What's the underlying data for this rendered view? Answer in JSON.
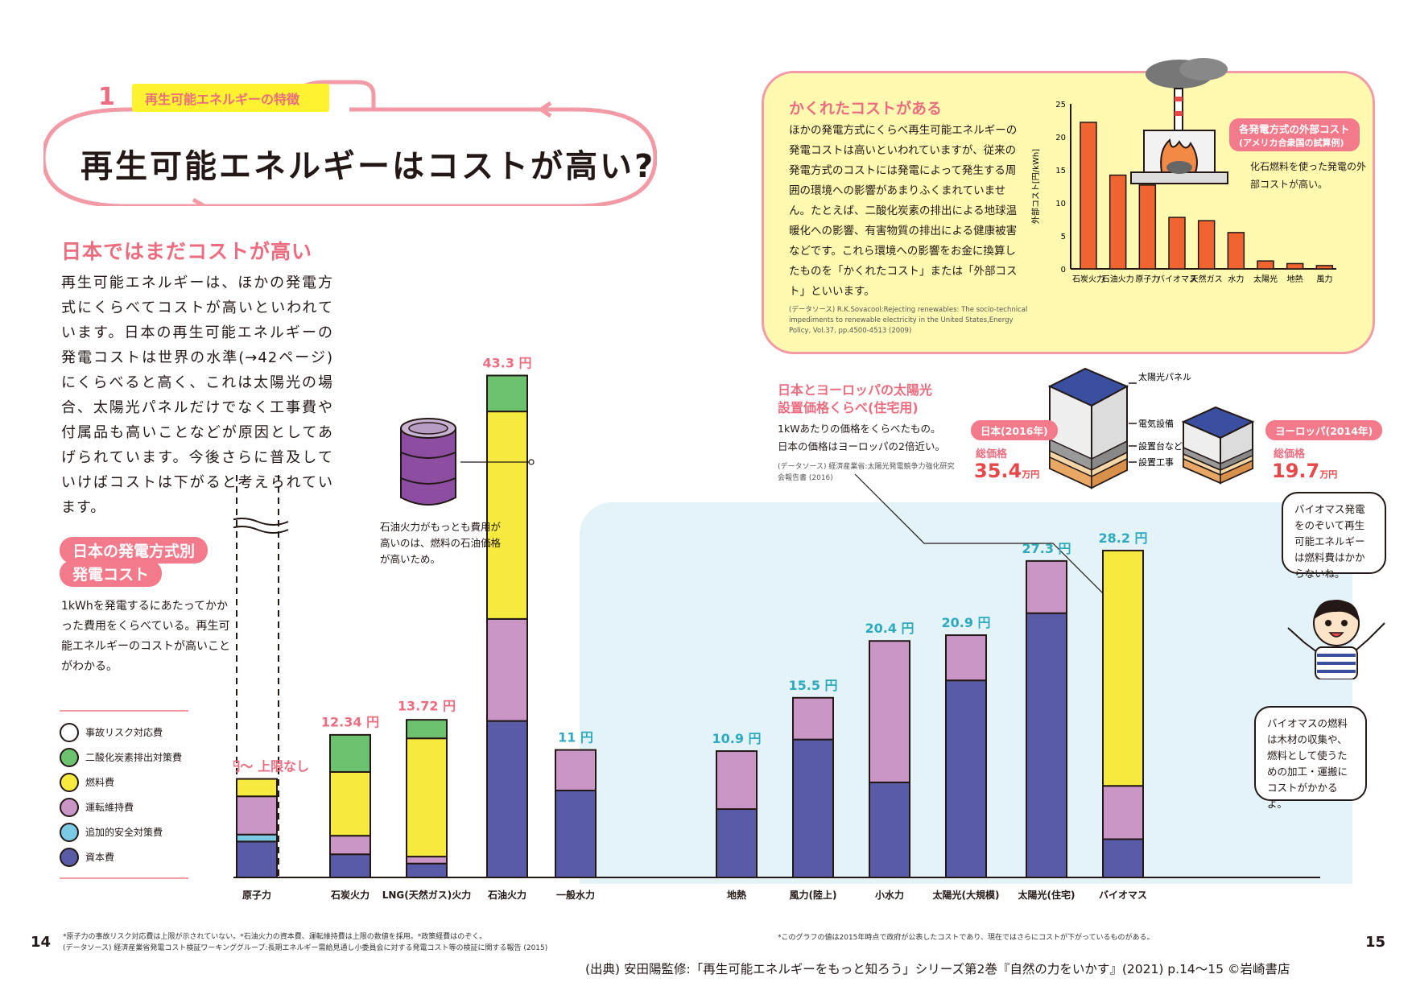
{
  "header": {
    "section_number": "1",
    "section_tag": "再生可能エネルギーの特徴",
    "title": "再生可能エネルギーはコストが高い?"
  },
  "left": {
    "heading": "日本ではまだコストが高い",
    "body": "再生可能エネルギーは、ほかの発電方式にくらべてコストが高いといわれています。日本の再生可能エネルギーの発電コストは世界の水準(→42ページ)にくらべると高く、これは太陽光の場合、太陽光パネルだけでなく工事費や付属品も高いことなどが原因としてあげられています。今後さらに普及していけばコストは下がると考えられています。",
    "chart_title_line1": "日本の発電方式別",
    "chart_title_line2": "発電コスト",
    "chart_note": "1kWhを発電するにあたってかかった費用をくらべている。再生可能エネルギーのコストが高いことがわかる。"
  },
  "legend": [
    {
      "label": "事故リスク対応費",
      "color": "#ffffff"
    },
    {
      "label": "二酸化炭素排出対策費",
      "color": "#6cc26e"
    },
    {
      "label": "燃料費",
      "color": "#f5ea3d"
    },
    {
      "label": "運転維持費",
      "color": "#c996c6"
    },
    {
      "label": "追加的安全対策費",
      "color": "#7cc9e6"
    },
    {
      "label": "資本費",
      "color": "#5a5ba6"
    }
  ],
  "oil_note": "石油火力がもっとも費用が高いのは、燃料の石油価格が高いため。",
  "hidden_cost": {
    "heading": "かくれたコストがある",
    "body": "ほかの発電方式にくらべ再生可能エネルギーの発電コストは高いといわれていますが、従来の発電方式のコストには発電によって発生する周囲の環境への影響があまりふくまれていません。たとえば、二酸化炭素の排出による地球温暖化への影響、有害物質の排出による健康被害などです。これら環境への影響をお金に換算したものを「かくれたコスト」または「外部コスト」といいます。",
    "source": "(データソース) R.K.Sovacool:Rejecting renewables: The socio-technical impediments to renewable electricity in the United States,Energy Policy, Vol.37, pp.4500-4513 (2009)",
    "tag": "各発電方式の外部コスト(アメリカ合衆国の試算例)",
    "tag_line1": "各発電方式の外部コスト",
    "tag_line2": "(アメリカ合衆国の試算例)",
    "note": "化石燃料を使った発電の外部コストが高い。"
  },
  "solar": {
    "heading_line1": "日本とヨーロッパの太陽光",
    "heading_line2": "設置価格くらべ(住宅用)",
    "body_line1": "1kWあたりの価格をくらべたもの。",
    "body_line2": "日本の価格はヨーロッパの2倍近い。",
    "source": "(データソース) 経済産業省:太陽光発電競争力強化研究会報告書 (2016)",
    "japan_tag": "日本(2016年)",
    "europe_tag": "ヨーロッパ(2014年)",
    "total_label": "総価格",
    "japan_value": "35.4",
    "europe_value": "19.7",
    "unit": "万円",
    "part_labels": [
      "太陽光パネル",
      "電気設備",
      "設置台など",
      "設置工事"
    ]
  },
  "speech": {
    "bubble1": "バイオマス発電をのぞいて再生可能エネルギーは燃料費はかからないね。",
    "bubble2": "バイオマスの燃料は木材の収集や、燃料として使うための加工・運搬にコストがかかるよ。"
  },
  "footnotes": {
    "left_line1": "*原子力の事故リスク対応費は上限が示されていない。*石油火力の資本費、運転維持費は上限の数値を採用。*政策経費はのぞく。",
    "left_line2": "(データソース) 経済産業省発電コスト検証ワーキンググループ:長期エネルギー需給見通し小委員会に対する発電コスト等の検証に関する報告 (2015)",
    "right": "*このグラフの値は2015年時点で政府が公表したコストであり、現在ではさらにコストが下がっているものがある。"
  },
  "page_left": "14",
  "page_right": "15",
  "credit": "(出典) 安田陽監修:「再生可能エネルギーをもっと知ろう」シリーズ第2巻『自然の力をいかす』(2021) p.14〜15 ©岩崎書店",
  "chart_data": [
    {
      "type": "bar",
      "title": "日本の発電方式別 発電コスト",
      "unit": "円",
      "stacked": true,
      "categories": [
        "原子力",
        "石炭火力",
        "LNG(天然ガス)火力",
        "石油火力",
        "一般水力",
        "地熱",
        "風力(陸上)",
        "小水力",
        "太陽光(大規模)",
        "太陽光(住宅)",
        "バイオマス"
      ],
      "totals": [
        "8.5円〜 上限なし",
        "12.34",
        "13.72",
        "43.3",
        "11",
        "10.9",
        "15.5",
        "20.4",
        "20.9",
        "27.3",
        "28.2"
      ],
      "total_values": [
        8.5,
        12.34,
        13.72,
        43.3,
        11,
        10.9,
        15.5,
        20.4,
        20.9,
        27.3,
        28.2
      ],
      "series": [
        {
          "name": "資本費",
          "color": "#5a5ba6",
          "values": [
            3.1,
            2.0,
            1.2,
            13.5,
            7.5,
            5.9,
            11.9,
            8.2,
            17.0,
            22.8,
            3.3
          ]
        },
        {
          "name": "追加的安全対策費",
          "color": "#7cc9e6",
          "values": [
            0.6,
            0,
            0,
            0,
            0,
            0,
            0,
            0,
            0,
            0,
            0
          ]
        },
        {
          "name": "運転維持費",
          "color": "#c996c6",
          "values": [
            3.3,
            1.6,
            0.6,
            8.8,
            3.5,
            5.0,
            3.6,
            12.2,
            3.9,
            4.5,
            4.6
          ]
        },
        {
          "name": "燃料費",
          "color": "#f5ea3d",
          "values": [
            1.5,
            5.5,
            10.2,
            17.9,
            0,
            0,
            0,
            0,
            0,
            0,
            20.3
          ]
        },
        {
          "name": "二酸化炭素排出対策費",
          "color": "#6cc26e",
          "values": [
            0,
            3.2,
            1.6,
            3.1,
            0,
            0,
            0,
            0,
            0,
            0,
            0
          ]
        }
      ]
    },
    {
      "type": "bar",
      "title": "各発電方式の外部コスト(アメリカ合衆国の試算例)",
      "ylabel": "外部コスト[円/kWh]",
      "ylim": [
        0,
        25
      ],
      "yticks": [
        0,
        5,
        10,
        15,
        20,
        25
      ],
      "categories": [
        "石炭火力",
        "石油火力",
        "原子力",
        "バイオマス",
        "天然ガス",
        "水力",
        "太陽光",
        "地熱",
        "風力"
      ],
      "values": [
        22.2,
        14.2,
        12.7,
        7.8,
        7.3,
        5.5,
        1.2,
        0.8,
        0.5
      ]
    }
  ]
}
